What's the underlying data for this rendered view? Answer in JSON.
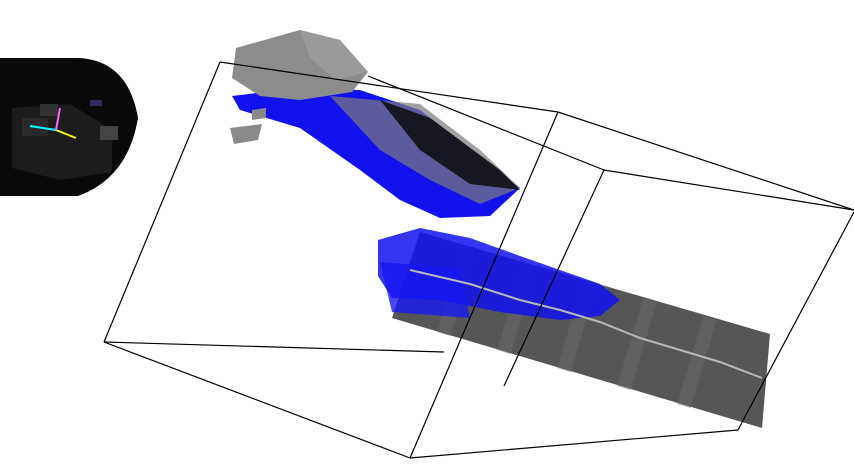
{
  "app": {
    "view": "3d-viewport"
  },
  "colors": {
    "background": "#ffffff",
    "voxel_points": "#1010f0",
    "mesh_dark": "#505050",
    "mesh_light": "#8a8a8a",
    "bounding_box": "#000000",
    "sensor_body": "#111111",
    "axis_x": "#ffff00",
    "axis_y": "#00ffff",
    "axis_z": "#ff66ff",
    "trajectory": "#b0b0b0"
  },
  "scene": {
    "objects": [
      "camera-frustum-icon",
      "axis-gizmo-icon",
      "bounding-box",
      "voxel-point-cloud",
      "tilted-plane-mesh",
      "robot-arm-mesh",
      "trajectory-line"
    ]
  }
}
